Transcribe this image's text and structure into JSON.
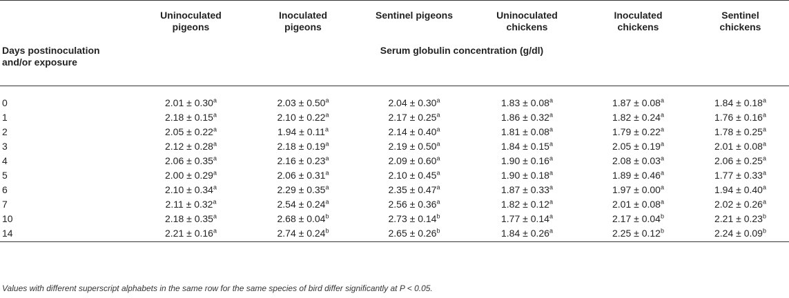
{
  "header": {
    "columns": [
      "Uninoculated\npigeons",
      "Inoculated\npigeons",
      "Sentinel pigeons",
      "Uninoculated\nchickens",
      "Inoculated\nchickens",
      "Sentinel\nchickens"
    ],
    "row_label": "Days postinoculation\nand/or exposure",
    "span_label": "Serum globulin concentration (g/dl)"
  },
  "rows": [
    {
      "day": "0",
      "cells": [
        {
          "v": "2.01 ± 0.30",
          "s": "a"
        },
        {
          "v": "2.03 ± 0.50",
          "s": "a"
        },
        {
          "v": "2.04 ± 0.30",
          "s": "a"
        },
        {
          "v": "1.83 ± 0.08",
          "s": "a"
        },
        {
          "v": "1.87 ± 0.08",
          "s": "a"
        },
        {
          "v": "1.84 ± 0.18",
          "s": "a"
        }
      ]
    },
    {
      "day": "1",
      "cells": [
        {
          "v": "2.18 ± 0.15",
          "s": "a"
        },
        {
          "v": "2.10 ± 0.22",
          "s": "a"
        },
        {
          "v": "2.17 ± 0.25",
          "s": "a"
        },
        {
          "v": "1.86 ± 0.32",
          "s": "a"
        },
        {
          "v": "1.82 ± 0.24",
          "s": "a"
        },
        {
          "v": "1.76 ± 0.16",
          "s": "a"
        }
      ]
    },
    {
      "day": "2",
      "cells": [
        {
          "v": "2.05 ± 0.22",
          "s": "a"
        },
        {
          "v": "1.94 ± 0.11",
          "s": "a"
        },
        {
          "v": "2.14 ± 0.40",
          "s": "a"
        },
        {
          "v": "1.81 ± 0.08",
          "s": "a"
        },
        {
          "v": "1.79 ± 0.22",
          "s": "a"
        },
        {
          "v": "1.78 ± 0.25",
          "s": "a"
        }
      ]
    },
    {
      "day": "3",
      "cells": [
        {
          "v": "2.12 ± 0.28",
          "s": "a"
        },
        {
          "v": "2.18 ± 0.19",
          "s": "a"
        },
        {
          "v": "2.19 ± 0.50",
          "s": "a"
        },
        {
          "v": "1.84 ± 0.15",
          "s": "a"
        },
        {
          "v": "2.05 ± 0.19",
          "s": "a"
        },
        {
          "v": "2.01 ± 0.08",
          "s": "a"
        }
      ]
    },
    {
      "day": "4",
      "cells": [
        {
          "v": "2.06 ± 0.35",
          "s": "a"
        },
        {
          "v": "2.16 ± 0.23",
          "s": "a"
        },
        {
          "v": "2.09 ± 0.60",
          "s": "a"
        },
        {
          "v": "1.90 ± 0.16",
          "s": "a"
        },
        {
          "v": "2.08 ± 0.03",
          "s": "a"
        },
        {
          "v": "2.06 ± 0.25",
          "s": "a"
        }
      ]
    },
    {
      "day": "5",
      "cells": [
        {
          "v": "2.00 ± 0.29",
          "s": "a"
        },
        {
          "v": "2.06 ± 0.31",
          "s": "a"
        },
        {
          "v": "2.10 ± 0.45",
          "s": "a"
        },
        {
          "v": "1.90 ± 0.18",
          "s": "a"
        },
        {
          "v": "1.89 ± 0.46",
          "s": "a"
        },
        {
          "v": "1.77 ± 0.33",
          "s": "a"
        }
      ]
    },
    {
      "day": "6",
      "cells": [
        {
          "v": "2.10 ± 0.34",
          "s": "a"
        },
        {
          "v": "2.29 ± 0.35",
          "s": "a"
        },
        {
          "v": "2.35 ± 0.47",
          "s": "a"
        },
        {
          "v": "1.87 ± 0.33",
          "s": "a"
        },
        {
          "v": "1.97 ± 0.00",
          "s": "a"
        },
        {
          "v": "1.94 ± 0.40",
          "s": "a"
        }
      ]
    },
    {
      "day": "7",
      "cells": [
        {
          "v": "2.11 ± 0.32",
          "s": "a"
        },
        {
          "v": "2.54 ± 0.24",
          "s": "a"
        },
        {
          "v": "2.56 ± 0.36",
          "s": "a"
        },
        {
          "v": "1.82 ± 0.12",
          "s": "a"
        },
        {
          "v": "2.01 ± 0.08",
          "s": "a"
        },
        {
          "v": "2.02 ± 0.26",
          "s": "a"
        }
      ]
    },
    {
      "day": "10",
      "cells": [
        {
          "v": "2.18 ± 0.35",
          "s": "a"
        },
        {
          "v": "2.68 ± 0.04",
          "s": "b"
        },
        {
          "v": "2.73 ± 0.14",
          "s": "b"
        },
        {
          "v": "1.77 ± 0.14",
          "s": "a"
        },
        {
          "v": "2.17 ± 0.04",
          "s": "b"
        },
        {
          "v": "2.21 ± 0.23",
          "s": "b"
        }
      ]
    },
    {
      "day": "14",
      "cells": [
        {
          "v": "2.21 ± 0.16",
          "s": "a"
        },
        {
          "v": "2.74 ± 0.24",
          "s": "b"
        },
        {
          "v": "2.65 ± 0.26",
          "s": "b"
        },
        {
          "v": "1.84 ± 0.26",
          "s": "a"
        },
        {
          "v": "2.25 ± 0.12",
          "s": "b"
        },
        {
          "v": "2.24 ± 0.09",
          "s": "b"
        }
      ]
    }
  ],
  "footnote": "Values with different superscript alphabets in the same row for the same species of bird differ significantly at P < 0.05."
}
